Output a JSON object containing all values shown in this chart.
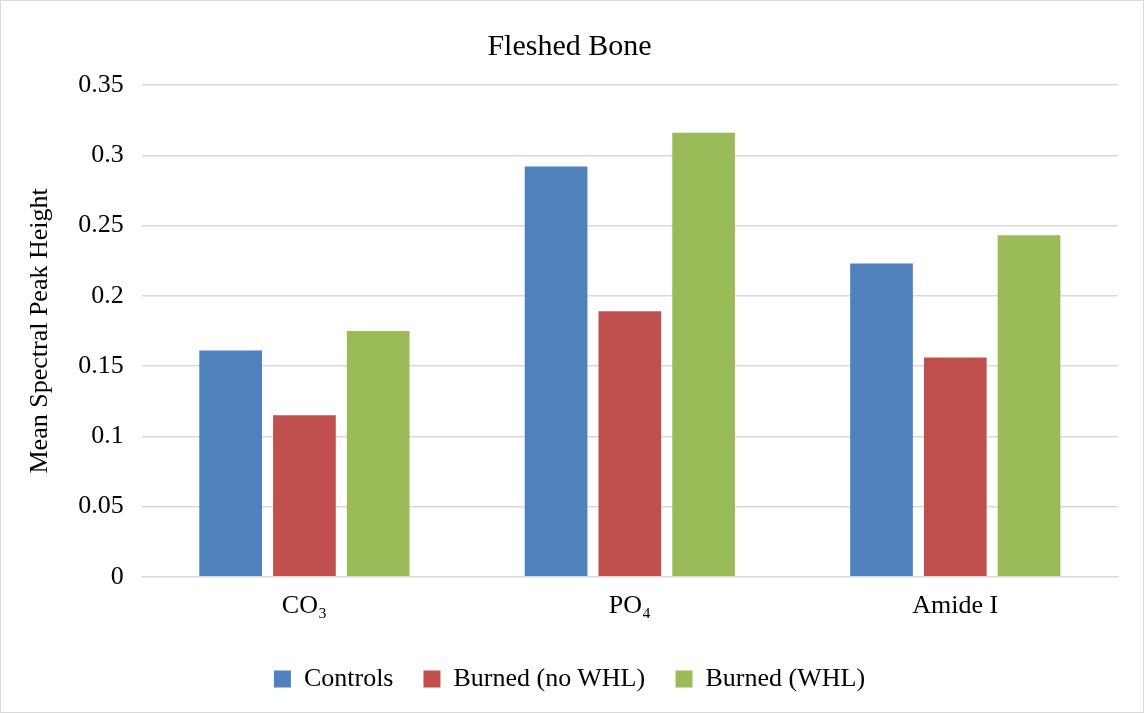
{
  "chart_data": {
    "type": "bar",
    "title": "Fleshed Bone",
    "ylabel": "Mean Spectral Peak Height",
    "categories": [
      "CO₃",
      "PO₄",
      "Amide I"
    ],
    "series": [
      {
        "name": "Controls",
        "color": "#4f81bd",
        "values": [
          0.161,
          0.292,
          0.223
        ]
      },
      {
        "name": "Burned (no WHL)",
        "color": "#c0504d",
        "values": [
          0.115,
          0.189,
          0.156
        ]
      },
      {
        "name": "Burned (WHL)",
        "color": "#9bbb59",
        "values": [
          0.175,
          0.316,
          0.243
        ]
      }
    ],
    "ylim": [
      0,
      0.35
    ],
    "yticks": [
      0,
      0.05,
      0.1,
      0.15,
      0.2,
      0.25,
      0.3,
      0.35
    ],
    "grid": "y",
    "legend": "bottom"
  }
}
